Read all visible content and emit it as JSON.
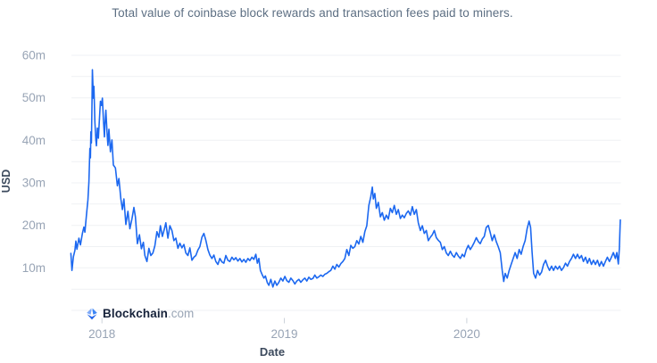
{
  "watermark": {
    "brand": "Blockchain",
    "suffix": ".com"
  },
  "colors": {
    "line": "#1c68f0",
    "grid": "#eff1f4",
    "tick_mark": "#ccd2da",
    "tick_label": "#98a4b5",
    "title_text": "#5d6f83",
    "axis_title_text": "#3c4a5d",
    "logo_brand": "#17233b",
    "logo_suffix": "#9aa6b6"
  },
  "chart_data": {
    "type": "line",
    "title": "Total value of coinbase block rewards and transaction fees paid to miners.",
    "xlabel": "Date",
    "ylabel": "USD",
    "legend": "none",
    "grid": true,
    "line_color": "#1c68f0",
    "ylim": [
      0,
      60
    ],
    "grid_values": [
      0,
      5,
      10,
      15,
      20,
      25,
      30,
      35,
      40,
      45,
      50,
      55,
      60
    ],
    "y_ticks": [
      {
        "value": 10,
        "label": "10m"
      },
      {
        "value": 20,
        "label": "20m"
      },
      {
        "value": 30,
        "label": "30m"
      },
      {
        "value": 40,
        "label": "40m"
      },
      {
        "value": 50,
        "label": "50m"
      },
      {
        "value": 60,
        "label": "60m"
      }
    ],
    "x_ticks": [
      {
        "year": 2018,
        "label": "2018"
      },
      {
        "year": 2019,
        "label": "2019"
      },
      {
        "year": 2020,
        "label": "2020"
      }
    ],
    "xlim_dates": [
      "2017-11-01",
      "2020-11-05"
    ],
    "units": "million USD per day",
    "points": [
      [
        "2017-10-31",
        13.4
      ],
      [
        "2017-11-02",
        9.4
      ],
      [
        "2017-11-05",
        12.6
      ],
      [
        "2017-11-08",
        14.1
      ],
      [
        "2017-11-10",
        16.3
      ],
      [
        "2017-11-12",
        14.4
      ],
      [
        "2017-11-16",
        17.0
      ],
      [
        "2017-11-19",
        15.4
      ],
      [
        "2017-11-23",
        18.1
      ],
      [
        "2017-11-26",
        19.6
      ],
      [
        "2017-11-28",
        18.4
      ],
      [
        "2017-12-01",
        22.3
      ],
      [
        "2017-12-04",
        26.0
      ],
      [
        "2017-12-06",
        30.2
      ],
      [
        "2017-12-08",
        38.1
      ],
      [
        "2017-12-09",
        35.9
      ],
      [
        "2017-12-10",
        42.0
      ],
      [
        "2017-12-11",
        39.4
      ],
      [
        "2017-12-12",
        47.8
      ],
      [
        "2017-12-13",
        56.6
      ],
      [
        "2017-12-15",
        49.9
      ],
      [
        "2017-12-16",
        52.7
      ],
      [
        "2017-12-18",
        44.3
      ],
      [
        "2017-12-20",
        40.1
      ],
      [
        "2017-12-21",
        38.7
      ],
      [
        "2017-12-23",
        42.9
      ],
      [
        "2017-12-25",
        40.5
      ],
      [
        "2017-12-27",
        45.0
      ],
      [
        "2017-12-29",
        49.2
      ],
      [
        "2017-12-31",
        48.2
      ],
      [
        "2018-01-02",
        49.9
      ],
      [
        "2018-01-04",
        45.0
      ],
      [
        "2018-01-06",
        40.8
      ],
      [
        "2018-01-07",
        43.6
      ],
      [
        "2018-01-09",
        47.1
      ],
      [
        "2018-01-11",
        42.2
      ],
      [
        "2018-01-13",
        38.8
      ],
      [
        "2018-01-15",
        42.6
      ],
      [
        "2018-01-18",
        37.3
      ],
      [
        "2018-01-21",
        40.1
      ],
      [
        "2018-01-24",
        34.2
      ],
      [
        "2018-01-28",
        33.5
      ],
      [
        "2018-02-01",
        29.3
      ],
      [
        "2018-02-04",
        31.0
      ],
      [
        "2018-02-08",
        26.2
      ],
      [
        "2018-02-11",
        23.7
      ],
      [
        "2018-02-14",
        26.2
      ],
      [
        "2018-02-18",
        20.2
      ],
      [
        "2018-02-22",
        23.3
      ],
      [
        "2018-02-26",
        19.2
      ],
      [
        "2018-03-02",
        21.5
      ],
      [
        "2018-03-06",
        24.2
      ],
      [
        "2018-03-09",
        22.0
      ],
      [
        "2018-03-13",
        15.7
      ],
      [
        "2018-03-17",
        17.8
      ],
      [
        "2018-03-21",
        14.5
      ],
      [
        "2018-03-25",
        16.0
      ],
      [
        "2018-03-28",
        12.9
      ],
      [
        "2018-04-01",
        11.5
      ],
      [
        "2018-04-05",
        14.6
      ],
      [
        "2018-04-09",
        12.9
      ],
      [
        "2018-04-13",
        13.5
      ],
      [
        "2018-04-17",
        15.2
      ],
      [
        "2018-04-21",
        18.5
      ],
      [
        "2018-04-25",
        17.2
      ],
      [
        "2018-04-28",
        19.9
      ],
      [
        "2018-05-02",
        17.4
      ],
      [
        "2018-05-06",
        19.2
      ],
      [
        "2018-05-09",
        20.6
      ],
      [
        "2018-05-13",
        17.0
      ],
      [
        "2018-05-17",
        19.9
      ],
      [
        "2018-05-21",
        18.8
      ],
      [
        "2018-05-25",
        16.4
      ],
      [
        "2018-05-29",
        17.0
      ],
      [
        "2018-06-02",
        14.6
      ],
      [
        "2018-06-06",
        15.8
      ],
      [
        "2018-06-10",
        14.7
      ],
      [
        "2018-06-14",
        15.5
      ],
      [
        "2018-06-18",
        13.5
      ],
      [
        "2018-06-22",
        12.9
      ],
      [
        "2018-06-26",
        14.7
      ],
      [
        "2018-06-30",
        11.8
      ],
      [
        "2018-07-04",
        12.5
      ],
      [
        "2018-07-08",
        12.9
      ],
      [
        "2018-07-12",
        14.2
      ],
      [
        "2018-07-16",
        15.0
      ],
      [
        "2018-07-20",
        17.2
      ],
      [
        "2018-07-24",
        18.1
      ],
      [
        "2018-07-28",
        16.5
      ],
      [
        "2018-08-01",
        14.3
      ],
      [
        "2018-08-05",
        13.0
      ],
      [
        "2018-08-09",
        12.2
      ],
      [
        "2018-08-13",
        13.0
      ],
      [
        "2018-08-17",
        11.5
      ],
      [
        "2018-08-21",
        10.8
      ],
      [
        "2018-08-25",
        12.2
      ],
      [
        "2018-08-29",
        11.4
      ],
      [
        "2018-09-02",
        11.1
      ],
      [
        "2018-09-06",
        12.9
      ],
      [
        "2018-09-10",
        11.8
      ],
      [
        "2018-09-14",
        11.5
      ],
      [
        "2018-09-18",
        12.5
      ],
      [
        "2018-09-22",
        11.9
      ],
      [
        "2018-09-26",
        12.4
      ],
      [
        "2018-09-30",
        11.6
      ],
      [
        "2018-10-04",
        12.2
      ],
      [
        "2018-10-08",
        11.4
      ],
      [
        "2018-10-12",
        12.0
      ],
      [
        "2018-10-16",
        11.3
      ],
      [
        "2018-10-20",
        12.2
      ],
      [
        "2018-10-24",
        11.7
      ],
      [
        "2018-10-28",
        12.5
      ],
      [
        "2018-11-01",
        12.0
      ],
      [
        "2018-11-05",
        13.2
      ],
      [
        "2018-11-08",
        11.1
      ],
      [
        "2018-11-11",
        12.2
      ],
      [
        "2018-11-14",
        9.4
      ],
      [
        "2018-11-18",
        8.3
      ],
      [
        "2018-11-21",
        7.6
      ],
      [
        "2018-11-24",
        8.1
      ],
      [
        "2018-11-28",
        6.5
      ],
      [
        "2018-12-01",
        5.9
      ],
      [
        "2018-12-05",
        7.3
      ],
      [
        "2018-12-09",
        5.5
      ],
      [
        "2018-12-13",
        6.9
      ],
      [
        "2018-12-17",
        5.9
      ],
      [
        "2018-12-21",
        6.6
      ],
      [
        "2018-12-25",
        7.6
      ],
      [
        "2018-12-29",
        6.9
      ],
      [
        "2019-01-02",
        8.0
      ],
      [
        "2019-01-06",
        7.0
      ],
      [
        "2019-01-10",
        6.6
      ],
      [
        "2019-01-14",
        7.6
      ],
      [
        "2019-01-18",
        7.0
      ],
      [
        "2019-01-22",
        6.2
      ],
      [
        "2019-01-26",
        6.9
      ],
      [
        "2019-01-30",
        7.3
      ],
      [
        "2019-02-03",
        6.6
      ],
      [
        "2019-02-07",
        7.2
      ],
      [
        "2019-02-11",
        7.6
      ],
      [
        "2019-02-15",
        6.9
      ],
      [
        "2019-02-19",
        7.8
      ],
      [
        "2019-02-23",
        7.3
      ],
      [
        "2019-02-27",
        7.5
      ],
      [
        "2019-03-03",
        8.3
      ],
      [
        "2019-03-07",
        7.6
      ],
      [
        "2019-03-11",
        7.9
      ],
      [
        "2019-03-15",
        8.3
      ],
      [
        "2019-03-19",
        8.0
      ],
      [
        "2019-03-23",
        8.5
      ],
      [
        "2019-03-27",
        8.7
      ],
      [
        "2019-03-31",
        9.1
      ],
      [
        "2019-04-04",
        9.4
      ],
      [
        "2019-04-08",
        10.4
      ],
      [
        "2019-04-12",
        9.7
      ],
      [
        "2019-04-16",
        10.8
      ],
      [
        "2019-04-20",
        10.2
      ],
      [
        "2019-04-24",
        11.0
      ],
      [
        "2019-04-28",
        11.5
      ],
      [
        "2019-05-02",
        12.2
      ],
      [
        "2019-05-06",
        14.3
      ],
      [
        "2019-05-10",
        12.9
      ],
      [
        "2019-05-14",
        15.3
      ],
      [
        "2019-05-18",
        14.6
      ],
      [
        "2019-05-22",
        15.0
      ],
      [
        "2019-05-26",
        16.4
      ],
      [
        "2019-05-30",
        15.6
      ],
      [
        "2019-06-03",
        17.4
      ],
      [
        "2019-06-07",
        16.0
      ],
      [
        "2019-06-11",
        18.5
      ],
      [
        "2019-06-15",
        19.9
      ],
      [
        "2019-06-19",
        24.7
      ],
      [
        "2019-06-23",
        26.8
      ],
      [
        "2019-06-26",
        29.0
      ],
      [
        "2019-06-28",
        26.2
      ],
      [
        "2019-07-01",
        27.5
      ],
      [
        "2019-07-04",
        24.0
      ],
      [
        "2019-07-08",
        25.4
      ],
      [
        "2019-07-12",
        22.0
      ],
      [
        "2019-07-16",
        23.0
      ],
      [
        "2019-07-20",
        21.2
      ],
      [
        "2019-07-24",
        22.4
      ],
      [
        "2019-07-28",
        21.5
      ],
      [
        "2019-08-01",
        24.0
      ],
      [
        "2019-08-05",
        23.0
      ],
      [
        "2019-08-09",
        24.7
      ],
      [
        "2019-08-13",
        22.6
      ],
      [
        "2019-08-17",
        23.7
      ],
      [
        "2019-08-21",
        21.6
      ],
      [
        "2019-08-25",
        22.4
      ],
      [
        "2019-08-29",
        21.8
      ],
      [
        "2019-09-02",
        22.8
      ],
      [
        "2019-09-06",
        23.4
      ],
      [
        "2019-09-10",
        22.4
      ],
      [
        "2019-09-14",
        24.4
      ],
      [
        "2019-09-18",
        22.6
      ],
      [
        "2019-09-22",
        23.7
      ],
      [
        "2019-09-26",
        20.6
      ],
      [
        "2019-09-30",
        18.8
      ],
      [
        "2019-10-04",
        19.9
      ],
      [
        "2019-10-08",
        18.1
      ],
      [
        "2019-10-12",
        18.8
      ],
      [
        "2019-10-16",
        16.4
      ],
      [
        "2019-10-20",
        17.2
      ],
      [
        "2019-10-24",
        17.8
      ],
      [
        "2019-10-28",
        18.8
      ],
      [
        "2019-11-01",
        17.1
      ],
      [
        "2019-11-05",
        16.5
      ],
      [
        "2019-11-09",
        16.0
      ],
      [
        "2019-11-13",
        14.3
      ],
      [
        "2019-11-17",
        15.0
      ],
      [
        "2019-11-21",
        13.5
      ],
      [
        "2019-11-25",
        12.9
      ],
      [
        "2019-11-29",
        13.9
      ],
      [
        "2019-12-03",
        13.0
      ],
      [
        "2019-12-07",
        12.5
      ],
      [
        "2019-12-11",
        13.6
      ],
      [
        "2019-12-15",
        12.8
      ],
      [
        "2019-12-19",
        12.2
      ],
      [
        "2019-12-23",
        13.2
      ],
      [
        "2019-12-27",
        12.6
      ],
      [
        "2019-12-31",
        14.3
      ],
      [
        "2020-01-04",
        15.3
      ],
      [
        "2020-01-08",
        14.3
      ],
      [
        "2020-01-12",
        15.1
      ],
      [
        "2020-01-16",
        16.0
      ],
      [
        "2020-01-20",
        17.1
      ],
      [
        "2020-01-24",
        16.2
      ],
      [
        "2020-01-28",
        15.7
      ],
      [
        "2020-02-01",
        16.8
      ],
      [
        "2020-02-05",
        17.4
      ],
      [
        "2020-02-09",
        19.5
      ],
      [
        "2020-02-13",
        20.0
      ],
      [
        "2020-02-17",
        18.3
      ],
      [
        "2020-02-21",
        16.4
      ],
      [
        "2020-02-25",
        17.8
      ],
      [
        "2020-02-29",
        16.2
      ],
      [
        "2020-03-04",
        15.0
      ],
      [
        "2020-03-08",
        13.6
      ],
      [
        "2020-03-12",
        9.4
      ],
      [
        "2020-03-15",
        6.8
      ],
      [
        "2020-03-18",
        8.7
      ],
      [
        "2020-03-22",
        7.6
      ],
      [
        "2020-03-26",
        9.4
      ],
      [
        "2020-03-30",
        10.8
      ],
      [
        "2020-04-03",
        12.2
      ],
      [
        "2020-04-07",
        13.6
      ],
      [
        "2020-04-11",
        12.2
      ],
      [
        "2020-04-15",
        14.3
      ],
      [
        "2020-04-19",
        13.2
      ],
      [
        "2020-04-23",
        15.0
      ],
      [
        "2020-04-27",
        16.4
      ],
      [
        "2020-05-01",
        19.2
      ],
      [
        "2020-05-05",
        21.0
      ],
      [
        "2020-05-08",
        19.5
      ],
      [
        "2020-05-11",
        13.6
      ],
      [
        "2020-05-14",
        8.7
      ],
      [
        "2020-05-18",
        7.6
      ],
      [
        "2020-05-22",
        9.4
      ],
      [
        "2020-05-26",
        8.3
      ],
      [
        "2020-05-30",
        9.0
      ],
      [
        "2020-06-03",
        10.8
      ],
      [
        "2020-06-07",
        11.8
      ],
      [
        "2020-06-11",
        10.4
      ],
      [
        "2020-06-15",
        9.4
      ],
      [
        "2020-06-19",
        10.4
      ],
      [
        "2020-06-23",
        9.4
      ],
      [
        "2020-06-27",
        10.4
      ],
      [
        "2020-07-01",
        9.7
      ],
      [
        "2020-07-05",
        10.4
      ],
      [
        "2020-07-09",
        9.4
      ],
      [
        "2020-07-13",
        10.1
      ],
      [
        "2020-07-17",
        11.1
      ],
      [
        "2020-07-21",
        10.4
      ],
      [
        "2020-07-25",
        11.5
      ],
      [
        "2020-07-29",
        12.2
      ],
      [
        "2020-08-02",
        13.2
      ],
      [
        "2020-08-06",
        12.2
      ],
      [
        "2020-08-10",
        13.2
      ],
      [
        "2020-08-14",
        12.2
      ],
      [
        "2020-08-18",
        12.9
      ],
      [
        "2020-08-22",
        11.5
      ],
      [
        "2020-08-26",
        12.5
      ],
      [
        "2020-08-30",
        11.1
      ],
      [
        "2020-09-03",
        12.2
      ],
      [
        "2020-09-07",
        10.8
      ],
      [
        "2020-09-11",
        11.8
      ],
      [
        "2020-09-15",
        10.8
      ],
      [
        "2020-09-19",
        11.8
      ],
      [
        "2020-09-23",
        10.4
      ],
      [
        "2020-09-27",
        11.5
      ],
      [
        "2020-10-01",
        10.4
      ],
      [
        "2020-10-05",
        11.5
      ],
      [
        "2020-10-09",
        12.5
      ],
      [
        "2020-10-13",
        11.5
      ],
      [
        "2020-10-17",
        12.5
      ],
      [
        "2020-10-21",
        13.6
      ],
      [
        "2020-10-25",
        12.2
      ],
      [
        "2020-10-28",
        13.6
      ],
      [
        "2020-10-31",
        10.9
      ],
      [
        "2020-11-02",
        14.5
      ],
      [
        "2020-11-04",
        21.3
      ]
    ]
  }
}
